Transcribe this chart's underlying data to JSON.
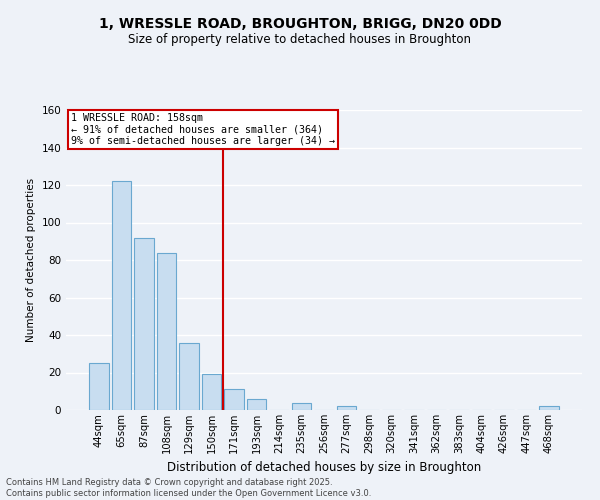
{
  "title_line1": "1, WRESSLE ROAD, BROUGHTON, BRIGG, DN20 0DD",
  "title_line2": "Size of property relative to detached houses in Broughton",
  "xlabel": "Distribution of detached houses by size in Broughton",
  "ylabel": "Number of detached properties",
  "footnote_line1": "Contains HM Land Registry data © Crown copyright and database right 2025.",
  "footnote_line2": "Contains public sector information licensed under the Open Government Licence v3.0.",
  "bar_labels": [
    "44sqm",
    "65sqm",
    "87sqm",
    "108sqm",
    "129sqm",
    "150sqm",
    "171sqm",
    "193sqm",
    "214sqm",
    "235sqm",
    "256sqm",
    "277sqm",
    "298sqm",
    "320sqm",
    "341sqm",
    "362sqm",
    "383sqm",
    "404sqm",
    "426sqm",
    "447sqm",
    "468sqm"
  ],
  "bar_values": [
    25,
    122,
    92,
    84,
    36,
    19,
    11,
    6,
    0,
    4,
    0,
    2,
    0,
    0,
    0,
    0,
    0,
    0,
    0,
    0,
    2
  ],
  "bar_color": "#c8ddf0",
  "bar_edge_color": "#6aa8d0",
  "property_line_x": 5.5,
  "property_line_label": "1 WRESSLE ROAD: 158sqm",
  "annotation_line2": "← 91% of detached houses are smaller (364)",
  "annotation_line3": "9% of semi-detached houses are larger (34) →",
  "annotation_box_color": "#cc0000",
  "ylim": [
    0,
    160
  ],
  "yticks": [
    0,
    20,
    40,
    60,
    80,
    100,
    120,
    140,
    160
  ],
  "background_color": "#eef2f8",
  "grid_color": "white",
  "title_fontsize": 10,
  "subtitle_fontsize": 9
}
